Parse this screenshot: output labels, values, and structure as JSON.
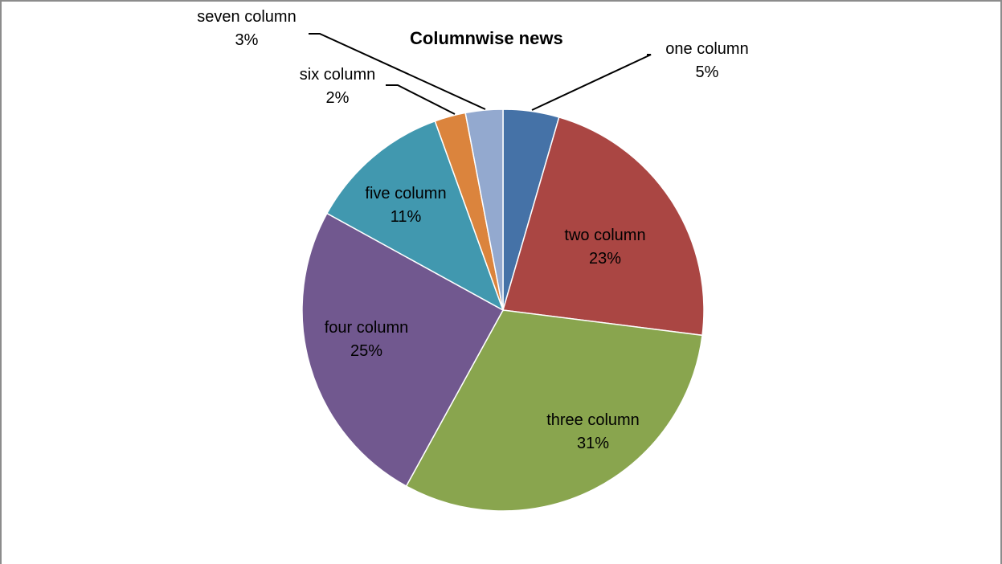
{
  "chart_data": {
    "type": "pie",
    "title": "Columnwise news",
    "slices": [
      {
        "label": "one column",
        "percent_label": "5%",
        "value": 4.5,
        "color": "#4572A7"
      },
      {
        "label": "two column",
        "percent_label": "23%",
        "value": 22.5,
        "color": "#AA4643"
      },
      {
        "label": "three column",
        "percent_label": "31%",
        "value": 31.0,
        "color": "#89A54E"
      },
      {
        "label": "four column",
        "percent_label": "25%",
        "value": 25.0,
        "color": "#71588F"
      },
      {
        "label": "five column",
        "percent_label": "11%",
        "value": 11.5,
        "color": "#4198AF"
      },
      {
        "label": "six column",
        "percent_label": "2%",
        "value": 2.5,
        "color": "#DB843D"
      },
      {
        "label": "seven column",
        "percent_label": "3%",
        "value": 3.0,
        "color": "#93A9CF"
      }
    ],
    "start_angle": "12 o'clock",
    "direction": "clockwise",
    "legend": "none",
    "border_color": "#8c8c8c"
  }
}
